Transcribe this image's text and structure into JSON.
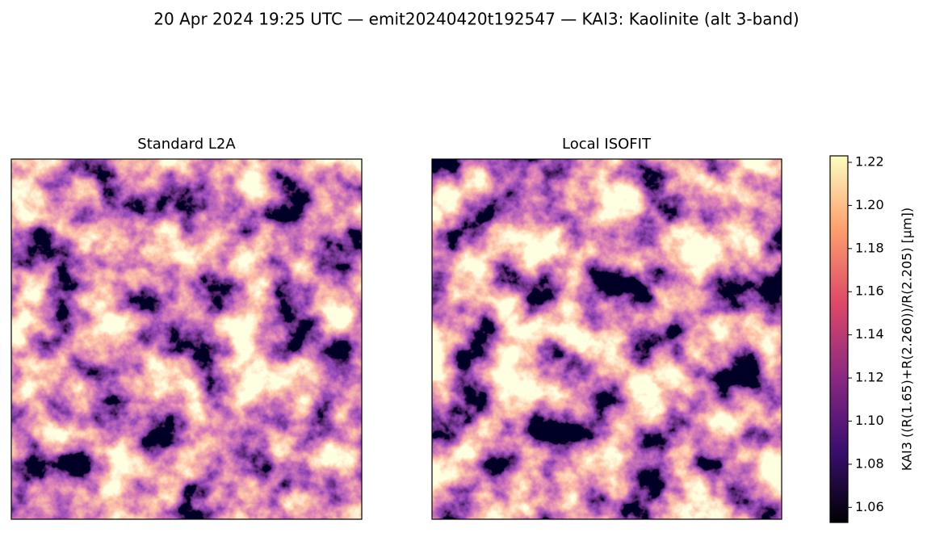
{
  "chart_data": {
    "type": "image",
    "title": "20 Apr 2024 19:25 UTC — emit20240420t192547 — KAI3: Kaolinite (alt 3-band)",
    "panels": [
      {
        "title": "Standard L2A"
      },
      {
        "title": "Local ISOFIT"
      }
    ],
    "colorbar": {
      "label": "KAI3  ((R(1.65)+R(2.260))/R(2.205)  [µm])",
      "colormap": "magma",
      "ylim": [
        1.053,
        1.223
      ],
      "yticks": [
        1.06,
        1.08,
        {
          "value": 1.1,
          "label": "1.10"
        },
        1.12,
        1.14,
        1.16,
        1.18,
        {
          "value": 1.2,
          "label": "1.20"
        },
        1.22
      ]
    }
  }
}
